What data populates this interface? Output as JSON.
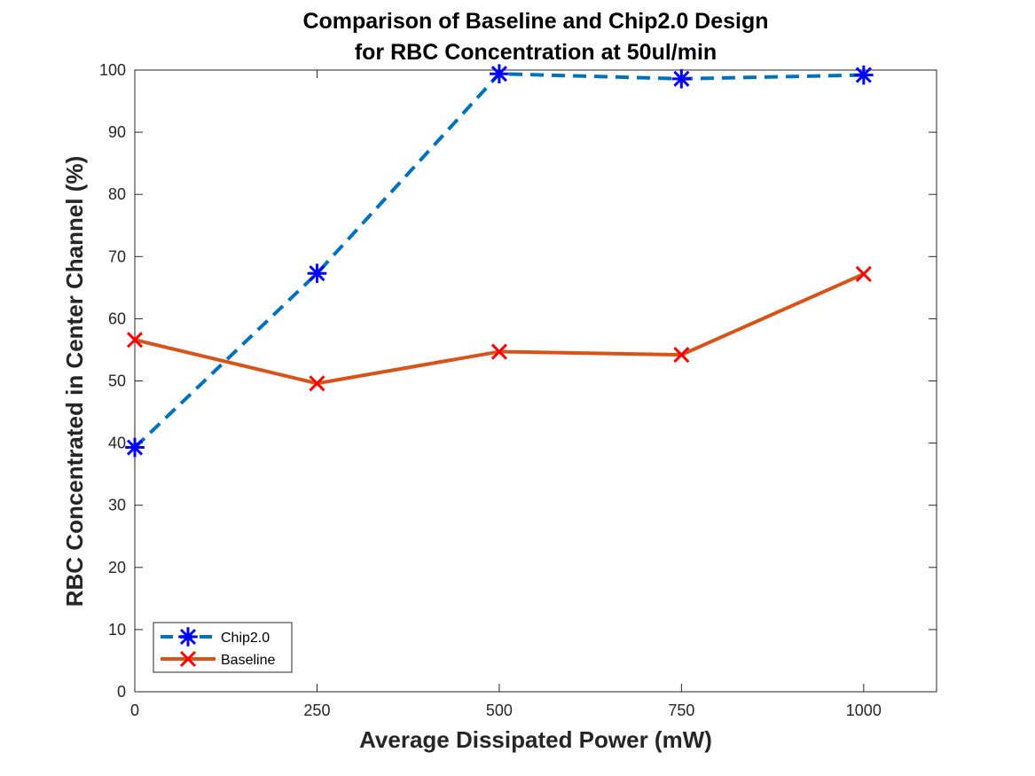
{
  "chart_data": {
    "type": "line",
    "title": [
      "Comparison of Baseline and Chip2.0 Design",
      "for RBC Concentration at 50ul/min"
    ],
    "xlabel": "Average Dissipated Power (mW)",
    "ylabel": "RBC Concentrated in Center Channel (%)",
    "xlim": [
      0,
      1100
    ],
    "ylim": [
      0,
      100
    ],
    "xticks": [
      0,
      250,
      500,
      750,
      1000
    ],
    "yticks": [
      0,
      10,
      20,
      30,
      40,
      50,
      60,
      70,
      80,
      90,
      100
    ],
    "grid": false,
    "legend_position": "bottom-left",
    "x": [
      0,
      250,
      500,
      750,
      1000
    ],
    "series": [
      {
        "name": "Chip2.0",
        "values": [
          39.3,
          67.3,
          99.4,
          98.6,
          99.2
        ],
        "line_color": "#0072BD",
        "marker_color": "#0000FF",
        "line_style": "dashed",
        "marker": "asterisk"
      },
      {
        "name": "Baseline",
        "values": [
          56.6,
          49.6,
          54.7,
          54.2,
          67.2
        ],
        "line_color": "#D95319",
        "marker_color": "#FF0000",
        "line_style": "solid",
        "marker": "x"
      }
    ]
  }
}
